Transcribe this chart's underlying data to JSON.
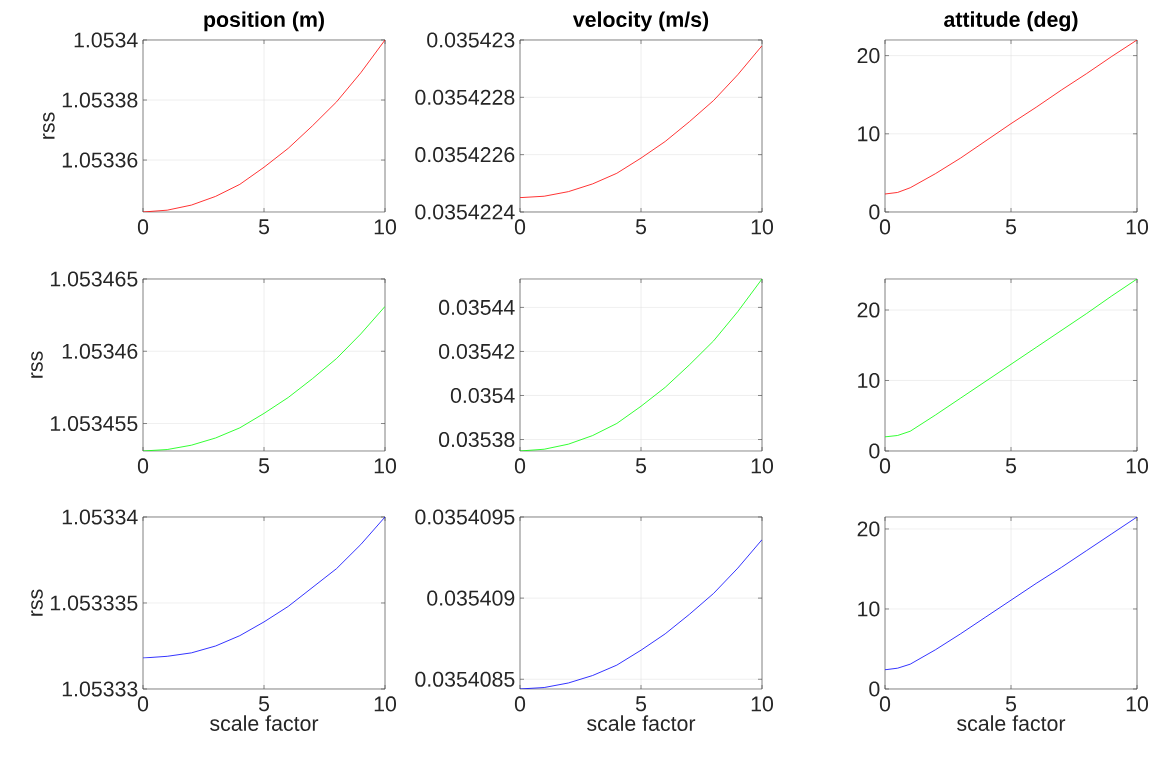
{
  "chart_data": [
    {
      "type": "line",
      "title": "position (m)",
      "ylabel": "rss",
      "x": [
        0,
        1,
        2,
        3,
        4,
        5,
        6,
        7,
        8,
        9,
        10
      ],
      "xlim": [
        0,
        10
      ],
      "xticks": [
        0,
        5,
        10
      ],
      "ylim": [
        1.0533427,
        1.0534
      ],
      "yticks": [
        1.05336,
        1.05338,
        1.0534
      ],
      "grid": true,
      "series": [
        {
          "color": "#ff0000",
          "values": [
            1.0533427,
            1.0533433,
            1.053345,
            1.0533479,
            1.0533519,
            1.0533576,
            1.0533639,
            1.0533714,
            1.0533794,
            1.0533891,
            1.0534
          ]
        }
      ]
    },
    {
      "type": "line",
      "title": "velocity (m/s)",
      "x": [
        0,
        1,
        2,
        3,
        4,
        5,
        6,
        7,
        8,
        9,
        10
      ],
      "xlim": [
        0,
        10
      ],
      "xticks": [
        0,
        5,
        10
      ],
      "ylim": [
        0.0354224,
        0.035423
      ],
      "yticks": [
        0.0354224,
        0.0354226,
        0.0354228,
        0.035423
      ],
      "grid": true,
      "series": [
        {
          "color": "#ff0000",
          "values": [
            0.03542245,
            0.035422455,
            0.035422471,
            0.035422498,
            0.035422535,
            0.035422588,
            0.035422646,
            0.035422715,
            0.035422789,
            0.035422879,
            0.03542298
          ]
        }
      ]
    },
    {
      "type": "line",
      "title": "attitude (deg)",
      "x": [
        0,
        0.5,
        1,
        2,
        3,
        4,
        5,
        6,
        7,
        8,
        9,
        10
      ],
      "xlim": [
        0,
        10
      ],
      "xticks": [
        0,
        5,
        10
      ],
      "ylim": [
        0,
        22
      ],
      "yticks": [
        0,
        10,
        20
      ],
      "grid": true,
      "series": [
        {
          "color": "#ff0000",
          "values": [
            2.3,
            2.5,
            3.1,
            4.9,
            6.9,
            9.1,
            11.3,
            13.4,
            15.6,
            17.7,
            19.9,
            22.0
          ]
        }
      ]
    },
    {
      "type": "line",
      "ylabel": "rss",
      "x": [
        0,
        1,
        2,
        3,
        4,
        5,
        6,
        7,
        8,
        9,
        10
      ],
      "xlim": [
        0,
        10
      ],
      "xticks": [
        0,
        5,
        10
      ],
      "ylim": [
        1.0534531,
        1.053465
      ],
      "yticks": [
        1.053455,
        1.05346,
        1.053465
      ],
      "grid": true,
      "series": [
        {
          "color": "#00ff00",
          "values": [
            1.0534531,
            1.0534532,
            1.0534535,
            1.053454,
            1.0534547,
            1.0534557,
            1.0534568,
            1.0534581,
            1.0534595,
            1.0534612,
            1.0534631
          ]
        }
      ]
    },
    {
      "type": "line",
      "x": [
        0,
        1,
        2,
        3,
        4,
        5,
        6,
        7,
        8,
        9,
        10
      ],
      "xlim": [
        0,
        10
      ],
      "xticks": [
        0,
        5,
        10
      ],
      "ylim": [
        0.0353748,
        0.0354529
      ],
      "yticks": [
        0.03538,
        0.0354,
        0.03542,
        0.03544
      ],
      "grid": true,
      "series": [
        {
          "color": "#00ff00",
          "values": [
            0.0353748,
            0.0353756,
            0.0353779,
            0.0353818,
            0.0353873,
            0.0353951,
            0.0354037,
            0.0354139,
            0.0354248,
            0.0354381,
            0.0354529
          ]
        }
      ]
    },
    {
      "type": "line",
      "x": [
        0,
        0.5,
        1,
        2,
        3,
        4,
        5,
        6,
        7,
        8,
        9,
        10
      ],
      "xlim": [
        0,
        10
      ],
      "xticks": [
        0,
        5,
        10
      ],
      "ylim": [
        0,
        24.4
      ],
      "yticks": [
        0,
        10,
        20
      ],
      "grid": true,
      "series": [
        {
          "color": "#00ff00",
          "values": [
            2.0,
            2.2,
            2.8,
            5.1,
            7.5,
            9.9,
            12.3,
            14.7,
            17.1,
            19.5,
            22.0,
            24.4
          ]
        }
      ]
    },
    {
      "type": "line",
      "ylabel": "rss",
      "xlabel": "scale factor",
      "x": [
        0,
        1,
        2,
        3,
        4,
        5,
        6,
        7,
        8,
        9,
        10
      ],
      "xlim": [
        0,
        10
      ],
      "xticks": [
        0,
        5,
        10
      ],
      "ylim": [
        1.05333,
        1.05334
      ],
      "yticks": [
        1.05333,
        1.053335,
        1.05334
      ],
      "grid": true,
      "series": [
        {
          "color": "#0000ff",
          "values": [
            1.0533318,
            1.0533319,
            1.0533321,
            1.0533325,
            1.0533331,
            1.0533339,
            1.0533348,
            1.0533359,
            1.053337,
            1.0533384,
            1.05334
          ]
        }
      ]
    },
    {
      "type": "line",
      "xlabel": "scale factor",
      "x": [
        0,
        1,
        2,
        3,
        4,
        5,
        6,
        7,
        8,
        9,
        10
      ],
      "xlim": [
        0,
        10
      ],
      "xticks": [
        0,
        5,
        10
      ],
      "ylim": [
        0.03540844,
        0.0354095
      ],
      "yticks": [
        0.0354085,
        0.035409,
        0.0354095
      ],
      "grid": true,
      "series": [
        {
          "color": "#0000ff",
          "values": [
            0.03540844,
            0.035408449,
            0.035408477,
            0.035408523,
            0.035408587,
            0.035408679,
            0.03540878,
            0.0354089,
            0.035409029,
            0.035409185,
            0.03540936
          ]
        }
      ]
    },
    {
      "type": "line",
      "xlabel": "scale factor",
      "x": [
        0,
        0.5,
        1,
        2,
        3,
        4,
        5,
        6,
        7,
        8,
        9,
        10
      ],
      "xlim": [
        0,
        10
      ],
      "xticks": [
        0,
        5,
        10
      ],
      "ylim": [
        0,
        21.5
      ],
      "yticks": [
        0,
        10,
        20
      ],
      "grid": true,
      "series": [
        {
          "color": "#0000ff",
          "values": [
            2.4,
            2.6,
            3.1,
            4.9,
            6.9,
            9.0,
            11.1,
            13.2,
            15.2,
            17.3,
            19.4,
            21.5
          ]
        }
      ]
    }
  ]
}
